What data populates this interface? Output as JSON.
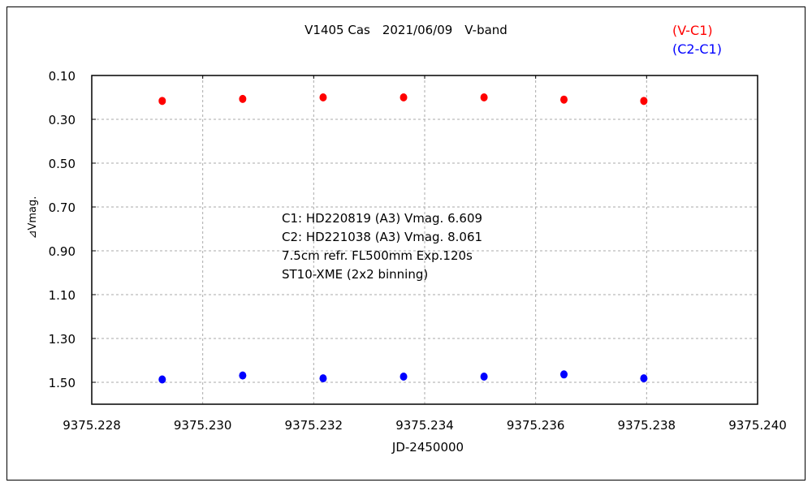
{
  "chart_data": {
    "type": "scatter",
    "title": "V1405 Cas　2021/06/09　V-band",
    "xlabel": "JD-2450000",
    "ylabel": "⊿Vmag.",
    "xlim": [
      9375.228,
      9375.24
    ],
    "ylim": [
      0.1,
      1.6
    ],
    "y_inverted": true,
    "grid": true,
    "xticks": [
      "9375.228",
      "9375.230",
      "9375.232",
      "9375.234",
      "9375.236",
      "9375.238",
      "9375.240"
    ],
    "xtick_values": [
      9375.228,
      9375.23,
      9375.232,
      9375.234,
      9375.236,
      9375.238,
      9375.24
    ],
    "yticks": [
      "0.10",
      "0.30",
      "0.50",
      "0.70",
      "0.90",
      "1.10",
      "1.30",
      "1.50"
    ],
    "ytick_values": [
      0.1,
      0.3,
      0.5,
      0.7,
      0.9,
      1.1,
      1.3,
      1.5
    ],
    "legend_position": "top-right",
    "x": [
      9375.22927,
      9375.23072,
      9375.23217,
      9375.23362,
      9375.23507,
      9375.23651,
      9375.23795
    ],
    "series": [
      {
        "name": "(V-C1)",
        "color": "#ff0000",
        "values": [
          0.216,
          0.207,
          0.2,
          0.2,
          0.2,
          0.21,
          0.216
        ]
      },
      {
        "name": "(C2-C1)",
        "color": "#0000ff",
        "values": [
          1.487,
          1.469,
          1.482,
          1.474,
          1.474,
          1.464,
          1.482
        ]
      }
    ],
    "annotations": [
      "C1: HD220819 (A3) Vmag. 6.609",
      "C2: HD221038 (A3) Vmag. 8.061",
      "7.5cm refr. FL500mm  Exp.120s",
      "ST10-XME (2x2 binning)"
    ]
  }
}
